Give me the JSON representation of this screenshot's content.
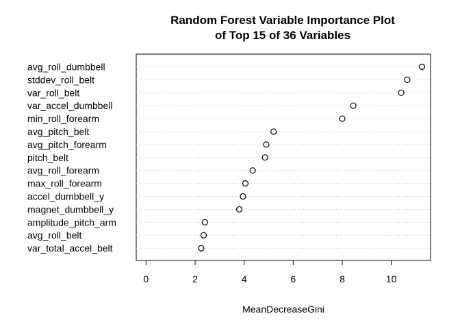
{
  "chart_data": {
    "type": "scatter",
    "title_lines": [
      "Random Forest Variable Importance Plot",
      "of Top 15 of 36 Variables"
    ],
    "xlabel": "MeanDecreaseGini",
    "ylabel": "",
    "xlim": [
      -0.4,
      11.6
    ],
    "xticks": [
      0,
      2,
      4,
      6,
      8,
      10
    ],
    "grid": "horizontal dotted",
    "marker": "open-circle",
    "categories": [
      "avg_roll_dumbbell",
      "stddev_roll_belt",
      "var_roll_belt",
      "var_accel_dumbbell",
      "min_roll_forearm",
      "avg_pitch_belt",
      "avg_pitch_forearm",
      "pitch_belt",
      "avg_roll_forearm",
      "max_roll_forearm",
      "accel_dumbbell_y",
      "magnet_dumbbell_y",
      "amplitude_pitch_arm",
      "avg_roll_belt",
      "var_total_accel_belt"
    ],
    "values": [
      11.25,
      10.65,
      10.4,
      8.45,
      8.0,
      5.2,
      4.9,
      4.85,
      4.35,
      4.05,
      3.95,
      3.8,
      2.4,
      2.35,
      2.25
    ]
  }
}
